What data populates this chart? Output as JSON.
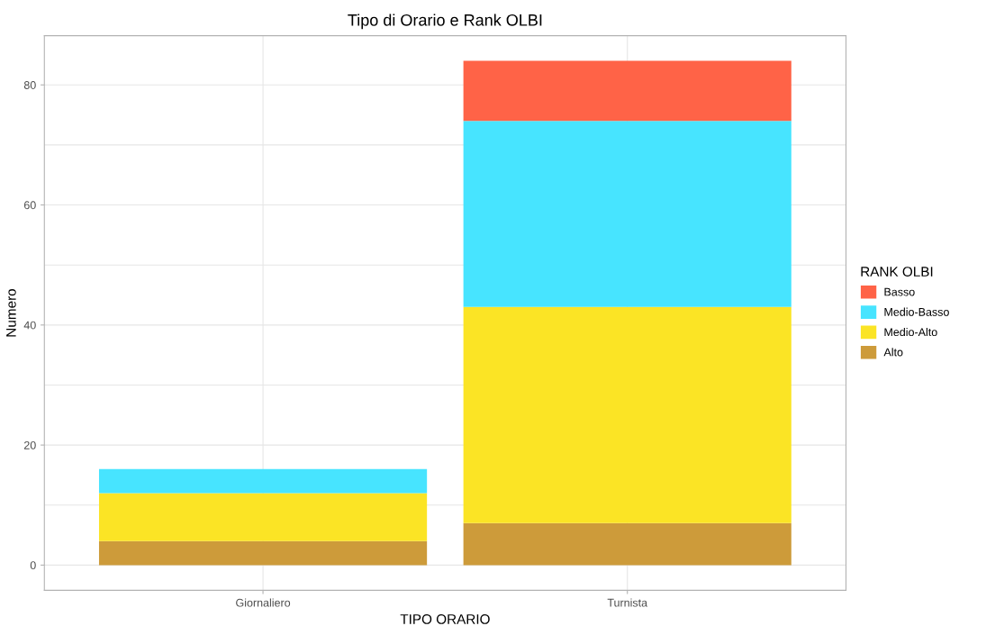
{
  "chart_data": {
    "type": "bar",
    "title": "Tipo di Orario e Rank OLBI",
    "xlabel": "TIPO ORARIO",
    "ylabel": "Numero",
    "legend_title": "RANK OLBI",
    "categories": [
      "Giornaliero",
      "Turnista"
    ],
    "stacked": true,
    "series": [
      {
        "name": "Alto",
        "color": "#cd9b3a",
        "values": [
          4,
          7
        ]
      },
      {
        "name": "Medio-Alto",
        "color": "#fbe425",
        "values": [
          8,
          36
        ]
      },
      {
        "name": "Medio-Basso",
        "color": "#47e4ff",
        "values": [
          4,
          31
        ]
      },
      {
        "name": "Basso",
        "color": "#ff6347",
        "values": [
          null,
          10
        ]
      }
    ],
    "ylim": [
      -4.2,
      88.2
    ],
    "yticks": [
      0,
      {
        "value": 10,
        "label": null
      },
      20,
      {
        "value": 30,
        "label": null
      },
      40,
      {
        "value": 50,
        "label": null
      },
      60,
      {
        "value": 70,
        "label": null
      },
      80
    ],
    "grid": true,
    "legend": "right"
  }
}
